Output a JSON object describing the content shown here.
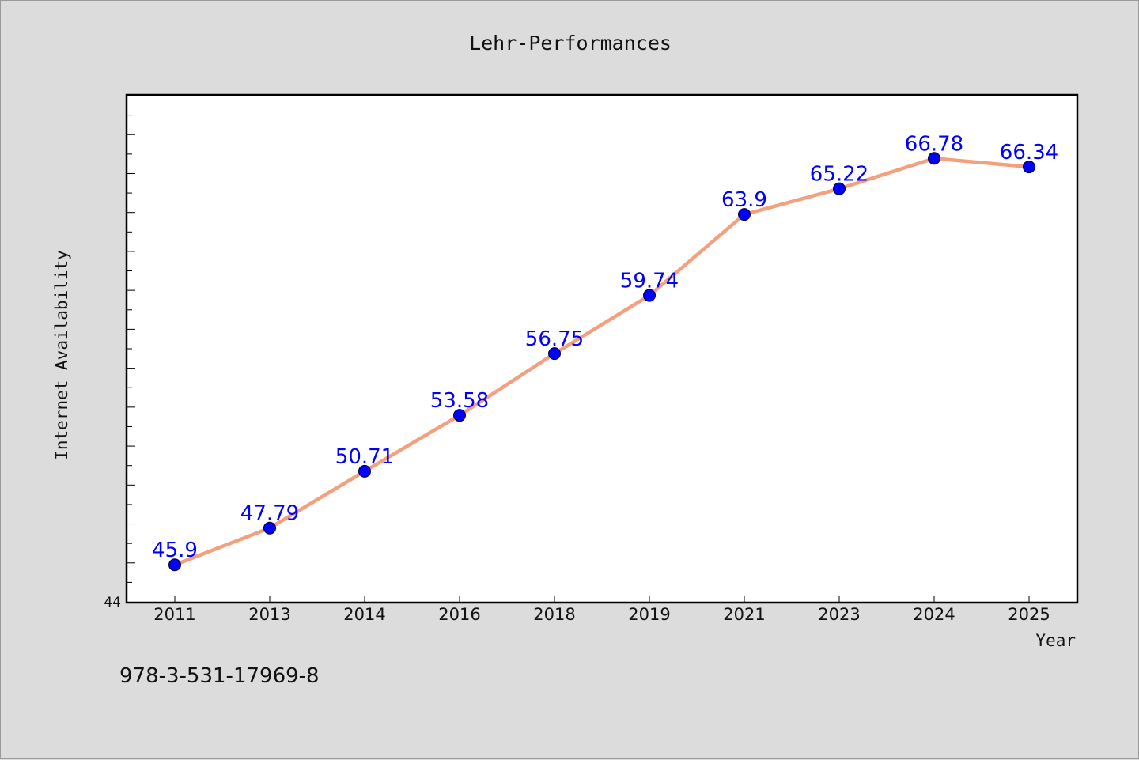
{
  "chart_data": {
    "type": "line",
    "title": "Lehr-Performances",
    "xlabel": "Year",
    "ylabel": "Internet Availability",
    "categories": [
      "2011",
      "2013",
      "2014",
      "2016",
      "2018",
      "2019",
      "2021",
      "2023",
      "2024",
      "2025"
    ],
    "series": [
      {
        "values": [
          45.9,
          47.79,
          50.71,
          53.58,
          56.75,
          59.74,
          63.9,
          65.22,
          66.78,
          66.34
        ]
      }
    ],
    "data_labels": [
      "45.9",
      "47.79",
      "50.71",
      "53.58",
      "56.75",
      "59.74",
      "63.9",
      "65.22",
      "66.78",
      "66.34"
    ],
    "ylim": [
      44,
      70
    ],
    "y_tick_labels": [
      "44"
    ],
    "grid": false,
    "legend": "none",
    "colors": {
      "line": "#f4a07e",
      "marker": "#0000ff",
      "data_label": "#0000ff",
      "background": "#dcdcdc",
      "plot_background": "#ffffff"
    }
  },
  "footer": {
    "isbn": "978-3-531-17969-8"
  }
}
